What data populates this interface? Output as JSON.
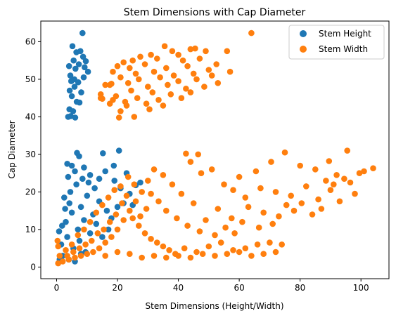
{
  "chart_data": {
    "type": "scatter",
    "title": "Stem Dimensions with Cap Diameter",
    "xlabel": "Stem Dimensions (Height/Width)",
    "ylabel": "Cap Diameter",
    "xlim": [
      -5.2,
      109.2
    ],
    "ylim": [
      -3.1,
      65.5
    ],
    "x_ticks": [
      0,
      20,
      40,
      60,
      80,
      100
    ],
    "y_ticks": [
      0,
      10,
      20,
      30,
      40,
      50,
      60
    ],
    "legend_position": "top-right",
    "series": [
      {
        "name": "Stem Height",
        "color": "#1f77b4",
        "points": [
          [
            8.5,
            62.3
          ],
          [
            5.2,
            58.8
          ],
          [
            4.1,
            53.5
          ],
          [
            6.5,
            57.2
          ],
          [
            7.8,
            57.5
          ],
          [
            8.7,
            56.0
          ],
          [
            9.6,
            54.8
          ],
          [
            10.3,
            52.0
          ],
          [
            4.5,
            51.0
          ],
          [
            5.8,
            50.0
          ],
          [
            7.1,
            49.2
          ],
          [
            4.3,
            47.0
          ],
          [
            8.1,
            46.5
          ],
          [
            5.0,
            45.5
          ],
          [
            6.6,
            44.0
          ],
          [
            7.5,
            43.8
          ],
          [
            4.2,
            42.0
          ],
          [
            5.4,
            41.5
          ],
          [
            3.8,
            40.0
          ],
          [
            4.6,
            40.2
          ],
          [
            6.2,
            52.8
          ],
          [
            8.9,
            50.5
          ],
          [
            5.9,
            48.0
          ],
          [
            7.3,
            54.0
          ],
          [
            6.1,
            39.8
          ],
          [
            9.2,
            53.2
          ],
          [
            5.6,
            55.0
          ],
          [
            4.8,
            49.5
          ],
          [
            6.7,
            30.4
          ],
          [
            7.4,
            29.5
          ],
          [
            15.2,
            30.3
          ],
          [
            20.5,
            31.0
          ],
          [
            3.5,
            27.5
          ],
          [
            5.0,
            27.0
          ],
          [
            9.0,
            26.5
          ],
          [
            18.8,
            27.0
          ],
          [
            16.0,
            25.5
          ],
          [
            23.0,
            25.0
          ],
          [
            11.0,
            24.5
          ],
          [
            14.0,
            23.5
          ],
          [
            26.0,
            21.8
          ],
          [
            27.5,
            22.5
          ],
          [
            19.0,
            23.0
          ],
          [
            21.0,
            21.0
          ],
          [
            2.5,
            18.5
          ],
          [
            4.5,
            20.0
          ],
          [
            6.5,
            22.0
          ],
          [
            8.0,
            16.0
          ],
          [
            10.0,
            19.0
          ],
          [
            12.0,
            14.0
          ],
          [
            3.0,
            12.0
          ],
          [
            5.0,
            14.5
          ],
          [
            7.0,
            10.0
          ],
          [
            9.0,
            12.5
          ],
          [
            11.0,
            9.0
          ],
          [
            13.0,
            11.5
          ],
          [
            15.0,
            8.0
          ],
          [
            17.0,
            10.0
          ],
          [
            1.5,
            6.0
          ],
          [
            3.5,
            8.0
          ],
          [
            5.5,
            5.0
          ],
          [
            7.5,
            7.0
          ],
          [
            9.5,
            4.0
          ],
          [
            2.0,
            3.0
          ],
          [
            4.0,
            2.0
          ],
          [
            6.0,
            1.5
          ],
          [
            8.0,
            3.5
          ],
          [
            1.0,
            2.0
          ],
          [
            14.0,
            17.5
          ],
          [
            16.5,
            15.0
          ],
          [
            18.0,
            13.0
          ],
          [
            24.0,
            19.5
          ],
          [
            22.0,
            17.0
          ],
          [
            20.0,
            16.0
          ],
          [
            12.5,
            21.0
          ],
          [
            10.5,
            22.5
          ],
          [
            3.8,
            24.0
          ],
          [
            6.0,
            25.5
          ],
          [
            8.5,
            23.5
          ],
          [
            2.8,
            15.5
          ],
          [
            4.2,
            17.0
          ],
          [
            0.8,
            9.5
          ],
          [
            1.8,
            11.0
          ],
          [
            25.0,
            16.5
          ]
        ]
      },
      {
        "name": "Stem Width",
        "color": "#ff7f0e",
        "points": [
          [
            64.0,
            62.3
          ],
          [
            35.5,
            58.8
          ],
          [
            44.0,
            58.0
          ],
          [
            45.5,
            58.2
          ],
          [
            56.0,
            57.5
          ],
          [
            38.0,
            57.5
          ],
          [
            40.0,
            56.5
          ],
          [
            49.0,
            57.5
          ],
          [
            27.5,
            56.0
          ],
          [
            31.0,
            56.5
          ],
          [
            22.0,
            54.5
          ],
          [
            25.0,
            55.0
          ],
          [
            33.0,
            55.5
          ],
          [
            41.5,
            55.0
          ],
          [
            47.0,
            55.5
          ],
          [
            52.5,
            54.0
          ],
          [
            20.0,
            53.5
          ],
          [
            24.0,
            53.0
          ],
          [
            29.0,
            54.0
          ],
          [
            36.0,
            53.0
          ],
          [
            43.0,
            53.5
          ],
          [
            50.0,
            52.5
          ],
          [
            18.5,
            52.0
          ],
          [
            26.0,
            51.5
          ],
          [
            32.0,
            52.0
          ],
          [
            38.5,
            51.0
          ],
          [
            45.0,
            51.5
          ],
          [
            51.0,
            51.0
          ],
          [
            57.0,
            52.0
          ],
          [
            21.0,
            50.5
          ],
          [
            27.0,
            50.0
          ],
          [
            34.0,
            50.5
          ],
          [
            40.0,
            49.5
          ],
          [
            46.0,
            50.0
          ],
          [
            53.0,
            49.0
          ],
          [
            17.5,
            48.5
          ],
          [
            23.5,
            49.0
          ],
          [
            30.0,
            48.0
          ],
          [
            36.5,
            48.5
          ],
          [
            42.5,
            47.5
          ],
          [
            48.5,
            48.0
          ],
          [
            16.0,
            48.5
          ],
          [
            18.0,
            48.8
          ],
          [
            24.5,
            47.0
          ],
          [
            31.5,
            46.5
          ],
          [
            37.5,
            46.0
          ],
          [
            44.0,
            46.5
          ],
          [
            14.5,
            46.0
          ],
          [
            19.5,
            45.5
          ],
          [
            26.5,
            45.0
          ],
          [
            33.5,
            44.5
          ],
          [
            41.0,
            45.0
          ],
          [
            15.0,
            44.8
          ],
          [
            18.5,
            44.5
          ],
          [
            22.5,
            44.0
          ],
          [
            29.5,
            43.5
          ],
          [
            35.0,
            43.0
          ],
          [
            17.5,
            43.5
          ],
          [
            23.0,
            43.0
          ],
          [
            30.5,
            42.0
          ],
          [
            21.0,
            41.5
          ],
          [
            25.5,
            40.0
          ],
          [
            20.5,
            39.8
          ],
          [
            14.5,
            45.0
          ],
          [
            95.5,
            31.0
          ],
          [
            104.0,
            26.3
          ],
          [
            101.0,
            25.5
          ],
          [
            89.5,
            28.2
          ],
          [
            92.0,
            24.5
          ],
          [
            96.5,
            22.5
          ],
          [
            88.5,
            23.0
          ],
          [
            85.0,
            26.0
          ],
          [
            80.0,
            27.0
          ],
          [
            75.0,
            30.5
          ],
          [
            70.5,
            28.0
          ],
          [
            65.5,
            25.5
          ],
          [
            60.0,
            24.0
          ],
          [
            55.0,
            22.0
          ],
          [
            47.5,
            25.0
          ],
          [
            44.0,
            28.0
          ],
          [
            42.5,
            30.2
          ],
          [
            46.5,
            30.0
          ],
          [
            51.0,
            26.0
          ],
          [
            58.0,
            20.5
          ],
          [
            62.0,
            18.5
          ],
          [
            67.0,
            21.0
          ],
          [
            72.0,
            20.0
          ],
          [
            77.0,
            19.0
          ],
          [
            82.0,
            21.5
          ],
          [
            86.0,
            18.0
          ],
          [
            90.0,
            20.5
          ],
          [
            93.0,
            17.5
          ],
          [
            98.0,
            19.5
          ],
          [
            84.0,
            14.0
          ],
          [
            78.0,
            15.0
          ],
          [
            73.0,
            13.5
          ],
          [
            68.0,
            14.5
          ],
          [
            63.0,
            16.0
          ],
          [
            57.5,
            13.0
          ],
          [
            53.0,
            15.5
          ],
          [
            49.0,
            12.5
          ],
          [
            45.0,
            17.0
          ],
          [
            41.0,
            19.5
          ],
          [
            38.0,
            22.0
          ],
          [
            35.0,
            24.5
          ],
          [
            32.0,
            26.0
          ],
          [
            30.0,
            23.0
          ],
          [
            28.0,
            20.0
          ],
          [
            26.0,
            17.5
          ],
          [
            24.0,
            15.0
          ],
          [
            22.0,
            12.5
          ],
          [
            20.0,
            10.0
          ],
          [
            18.0,
            8.0
          ],
          [
            16.0,
            6.5
          ],
          [
            14.0,
            5.0
          ],
          [
            12.0,
            4.0
          ],
          [
            10.0,
            3.5
          ],
          [
            8.0,
            3.0
          ],
          [
            6.0,
            2.5
          ],
          [
            4.0,
            2.0
          ],
          [
            2.0,
            1.5
          ],
          [
            0.5,
            1.0
          ],
          [
            1.0,
            3.0
          ],
          [
            0.5,
            5.5
          ],
          [
            0.3,
            7.0
          ],
          [
            3.0,
            4.5
          ],
          [
            5.0,
            6.0
          ],
          [
            7.0,
            8.5
          ],
          [
            9.0,
            10.0
          ],
          [
            11.0,
            12.0
          ],
          [
            13.0,
            14.5
          ],
          [
            15.0,
            16.5
          ],
          [
            17.0,
            18.5
          ],
          [
            19.0,
            20.5
          ],
          [
            21.0,
            21.5
          ],
          [
            23.0,
            19.0
          ],
          [
            25.0,
            13.0
          ],
          [
            27.0,
            11.0
          ],
          [
            29.0,
            9.0
          ],
          [
            31.0,
            7.5
          ],
          [
            33.0,
            6.5
          ],
          [
            35.0,
            5.5
          ],
          [
            37.0,
            4.5
          ],
          [
            39.0,
            3.5
          ],
          [
            42.0,
            5.0
          ],
          [
            46.0,
            4.0
          ],
          [
            50.0,
            5.5
          ],
          [
            54.0,
            6.5
          ],
          [
            58.0,
            4.5
          ],
          [
            62.0,
            5.0
          ],
          [
            66.0,
            6.0
          ],
          [
            70.0,
            6.5
          ],
          [
            74.0,
            6.0
          ],
          [
            72.0,
            4.0
          ],
          [
            68.0,
            3.5
          ],
          [
            64.0,
            3.0
          ],
          [
            60.0,
            4.0
          ],
          [
            56.0,
            3.5
          ],
          [
            52.0,
            3.0
          ],
          [
            48.0,
            3.5
          ],
          [
            44.0,
            2.5
          ],
          [
            40.0,
            3.0
          ],
          [
            36.0,
            2.5
          ],
          [
            32.0,
            3.0
          ],
          [
            28.0,
            2.5
          ],
          [
            24.0,
            3.5
          ],
          [
            20.0,
            4.0
          ],
          [
            16.0,
            3.0
          ],
          [
            75.5,
            16.5
          ],
          [
            80.5,
            17.0
          ],
          [
            87.0,
            15.5
          ],
          [
            91.0,
            22.0
          ],
          [
            94.5,
            23.5
          ],
          [
            99.5,
            25.0
          ],
          [
            61.0,
            12.0
          ],
          [
            66.5,
            10.5
          ],
          [
            71.0,
            11.5
          ],
          [
            58.5,
            9.0
          ],
          [
            55.5,
            10.5
          ],
          [
            52.0,
            8.5
          ],
          [
            47.0,
            9.5
          ],
          [
            43.0,
            11.0
          ],
          [
            39.5,
            13.0
          ],
          [
            36.0,
            15.0
          ],
          [
            33.5,
            17.5
          ],
          [
            31.0,
            19.5
          ],
          [
            29.5,
            15.5
          ],
          [
            27.5,
            13.5
          ],
          [
            25.5,
            22.0
          ],
          [
            23.5,
            24.0
          ],
          [
            21.5,
            17.0
          ],
          [
            19.5,
            14.0
          ],
          [
            17.5,
            12.0
          ],
          [
            15.5,
            10.0
          ],
          [
            13.5,
            9.0
          ],
          [
            11.5,
            7.0
          ],
          [
            9.5,
            6.0
          ],
          [
            7.5,
            5.0
          ],
          [
            5.5,
            4.0
          ],
          [
            3.5,
            3.0
          ]
        ]
      }
    ]
  }
}
